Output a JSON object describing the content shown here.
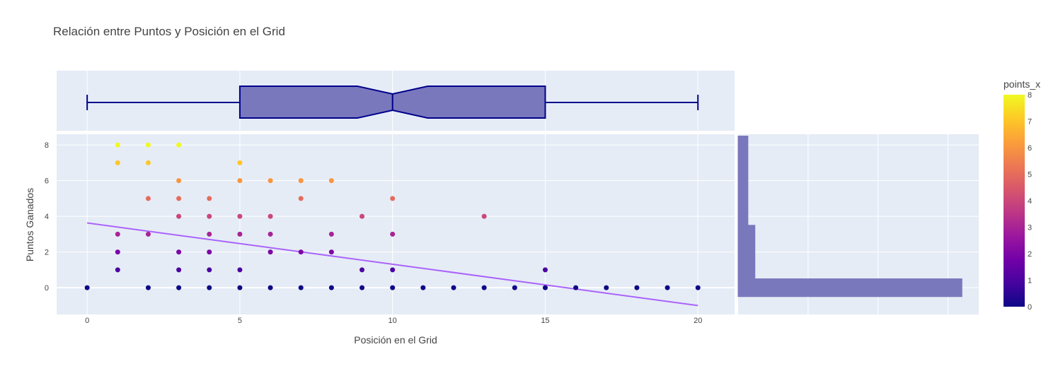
{
  "chart_data": {
    "type": "scatter",
    "title": "Relación entre Puntos y Posición en el Grid",
    "xlabel": "Posición en el Grid",
    "ylabel": "Puntos Ganados",
    "xlim": [
      -1,
      21.2
    ],
    "ylim": [
      -1.5,
      8.6
    ],
    "x_ticks": [
      0,
      5,
      10,
      15,
      20
    ],
    "y_ticks": [
      0,
      2,
      4,
      6,
      8
    ],
    "grid": true,
    "colorbar": {
      "title": "points_x",
      "min": 0,
      "max": 8,
      "ticks": [
        0,
        1,
        2,
        3,
        4,
        5,
        6,
        7,
        8
      ],
      "colorscale": [
        "#0d0887",
        "#46039f",
        "#7201a8",
        "#9c179e",
        "#bd3786",
        "#d8576b",
        "#ed7953",
        "#fb9f3a",
        "#fdca26",
        "#f0f921"
      ]
    },
    "points": [
      [
        0,
        0
      ],
      [
        1,
        1
      ],
      [
        1,
        2
      ],
      [
        1,
        3
      ],
      [
        1,
        7
      ],
      [
        1,
        8
      ],
      [
        2,
        0
      ],
      [
        2,
        3
      ],
      [
        2,
        5
      ],
      [
        2,
        7
      ],
      [
        2,
        8
      ],
      [
        3,
        0
      ],
      [
        3,
        1
      ],
      [
        3,
        2
      ],
      [
        3,
        4
      ],
      [
        3,
        5
      ],
      [
        3,
        6
      ],
      [
        3,
        8
      ],
      [
        4,
        0
      ],
      [
        4,
        1
      ],
      [
        4,
        2
      ],
      [
        4,
        3
      ],
      [
        4,
        4
      ],
      [
        4,
        5
      ],
      [
        5,
        0
      ],
      [
        5,
        1
      ],
      [
        5,
        3
      ],
      [
        5,
        4
      ],
      [
        5,
        6
      ],
      [
        5,
        7
      ],
      [
        6,
        0
      ],
      [
        6,
        2
      ],
      [
        6,
        3
      ],
      [
        6,
        4
      ],
      [
        6,
        6
      ],
      [
        7,
        0
      ],
      [
        7,
        2
      ],
      [
        7,
        5
      ],
      [
        7,
        6
      ],
      [
        8,
        0
      ],
      [
        8,
        2
      ],
      [
        8,
        3
      ],
      [
        8,
        6
      ],
      [
        9,
        0
      ],
      [
        9,
        1
      ],
      [
        9,
        4
      ],
      [
        10,
        0
      ],
      [
        10,
        1
      ],
      [
        10,
        3
      ],
      [
        10,
        5
      ],
      [
        11,
        0
      ],
      [
        12,
        0
      ],
      [
        13,
        0
      ],
      [
        13,
        4
      ],
      [
        14,
        0
      ],
      [
        15,
        0
      ],
      [
        15,
        1
      ],
      [
        16,
        0
      ],
      [
        17,
        0
      ],
      [
        18,
        0
      ],
      [
        19,
        0
      ],
      [
        20,
        0
      ]
    ],
    "trendline": {
      "x": [
        0,
        20
      ],
      "y": [
        3.63,
        -1.0
      ],
      "color": "#ab63fa"
    },
    "marginal_box": {
      "orientation": "horizontal",
      "notched": true,
      "min": 0,
      "q1": 5,
      "median": 10,
      "q3": 15,
      "max": 20,
      "notch_low": 8.85,
      "notch_high": 11.15,
      "fill_color": "#7a78bd",
      "line_color": "#00008b"
    },
    "marginal_histogram": {
      "orientation": "horizontal",
      "bins": [
        {
          "y_start": -0.5,
          "y_end": 0.5,
          "count": 160
        },
        {
          "y_start": 0.5,
          "y_end": 3.5,
          "count": 12
        },
        {
          "y_start": 3.5,
          "y_end": 8.5,
          "count": 7
        }
      ],
      "xmax": 172,
      "fill_color": "#7a78bd"
    }
  }
}
